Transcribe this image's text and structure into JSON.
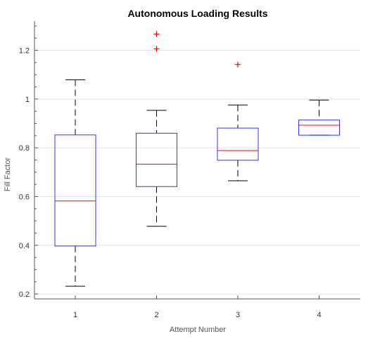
{
  "chart_data": {
    "type": "boxplot",
    "title": "Autonomous Loading Results",
    "xlabel": "Attempt Number",
    "ylabel": "Fill Factor",
    "categories": [
      "1",
      "2",
      "3",
      "4"
    ],
    "yticks": [
      "0.2",
      "0.4",
      "0.6",
      "0.8",
      "1",
      "1.2"
    ],
    "ylim": [
      0.18,
      1.32
    ],
    "grid": "horizontal",
    "boxes": [
      {
        "category": "1",
        "whisker_low": 0.232,
        "q1": 0.397,
        "median": 0.582,
        "q3": 0.853,
        "whisker_high": 1.079,
        "outliers": []
      },
      {
        "category": "2",
        "whisker_low": 0.478,
        "q1": 0.641,
        "median": 0.733,
        "q3": 0.86,
        "whisker_high": 0.954,
        "outliers": [
          1.206,
          1.267
        ]
      },
      {
        "category": "3",
        "whisker_low": 0.665,
        "q1": 0.749,
        "median": 0.789,
        "q3": 0.881,
        "whisker_high": 0.976,
        "outliers": [
          1.142
        ]
      },
      {
        "category": "4",
        "whisker_low": 0.852,
        "q1": 0.852,
        "median": 0.893,
        "q3": 0.914,
        "whisker_high": 0.996,
        "outliers": []
      }
    ],
    "colors": {
      "box": "#3333ff",
      "median": "#ff0000",
      "whisker": "#000000",
      "outlier": "#ff0000",
      "grid": "#e3e3e3",
      "axis": "#555555"
    }
  }
}
